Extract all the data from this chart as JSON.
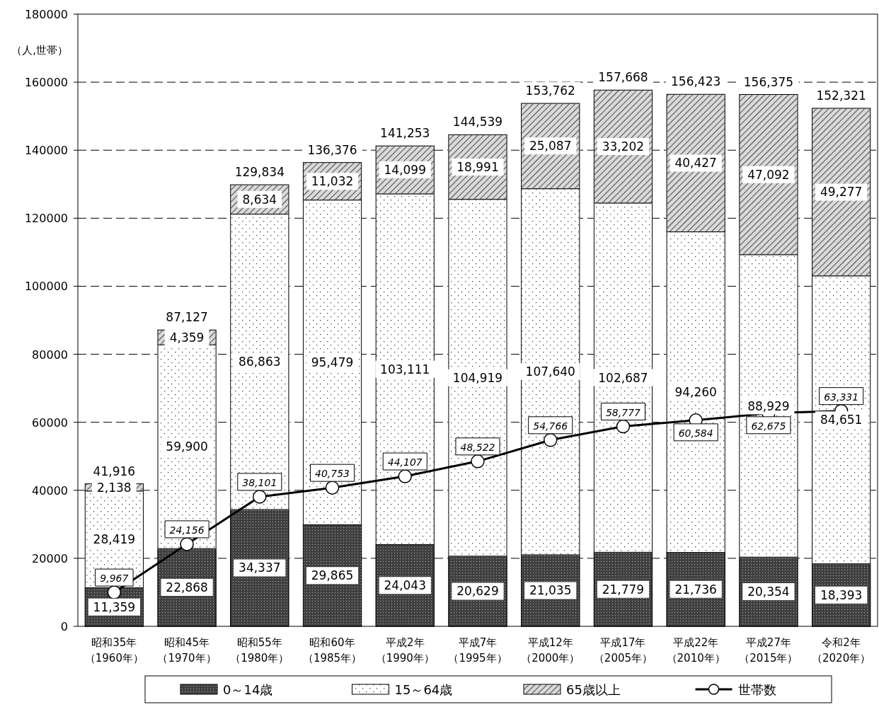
{
  "chart_data": {
    "type": "bar",
    "stacked": true,
    "ylabel": "（人,世帯）",
    "categories": [
      "昭和35年（1960年）",
      "昭和45年（1970年）",
      "昭和55年（1980年）",
      "昭和60年（1985年）",
      "平成2年（1990年）",
      "平成7年（1995年）",
      "平成12年（2000年）",
      "平成17年（2005年）",
      "平成22年（2010年）",
      "平成27年（2015年）",
      "令和2年（2020年）"
    ],
    "ylim": [
      0,
      180000
    ],
    "yticks": [
      0,
      20000,
      40000,
      60000,
      80000,
      100000,
      120000,
      140000,
      160000,
      180000
    ],
    "grid": "y",
    "legend": "bottom",
    "series": [
      {
        "name": "0～14歳",
        "color": "#404040",
        "values": [
          11359,
          22868,
          34337,
          29865,
          24043,
          20629,
          21035,
          21779,
          21736,
          20354,
          18393
        ],
        "value_labels": [
          "11,359",
          "22,868",
          "34,337",
          "29,865",
          "24,043",
          "20,629",
          "21,035",
          "21,779",
          "21,736",
          "20,354",
          "18,393"
        ]
      },
      {
        "name": "15～64歳",
        "color": "#ffffff",
        "values": [
          28419,
          59900,
          86863,
          95479,
          103111,
          104919,
          107640,
          102687,
          94260,
          88929,
          84651
        ],
        "value_labels": [
          "28,419",
          "59,900",
          "86,863",
          "95,479",
          "103,111",
          "104,919",
          "107,640",
          "102,687",
          "94,260",
          "88,929",
          "84,651"
        ]
      },
      {
        "name": "65歳以上",
        "color": "#d9d9d9",
        "values": [
          2138,
          4359,
          8634,
          11032,
          14099,
          18991,
          25087,
          33202,
          40427,
          47092,
          49277
        ],
        "value_labels": [
          "2,138",
          "4,359",
          "8,634",
          "11,032",
          "14,099",
          "18,991",
          "25,087",
          "33,202",
          "40,427",
          "47,092",
          "49,277"
        ]
      },
      {
        "name": "世帯数",
        "type": "line",
        "color": "#000000",
        "marker": "circle",
        "values": [
          9967,
          24156,
          38101,
          40753,
          44107,
          48522,
          54766,
          58777,
          60584,
          62675,
          63331
        ],
        "value_labels": [
          "9,967",
          "24,156",
          "38,101",
          "40,753",
          "44,107",
          "48,522",
          "54,766",
          "58,777",
          "60,584",
          "62,675",
          "63,331"
        ]
      }
    ],
    "totals": [
      "41,916",
      "87,127",
      "129,834",
      "136,376",
      "141,253",
      "144,539",
      "153,762",
      "157,668",
      "156,423",
      "156,375",
      "152,321"
    ]
  }
}
